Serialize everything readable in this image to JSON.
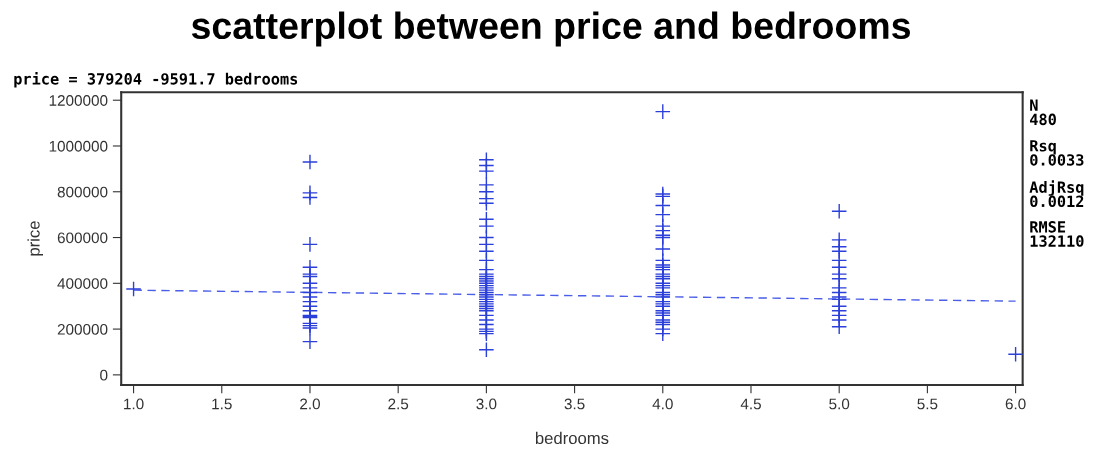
{
  "chart_data": {
    "type": "scatter",
    "title": "scatterplot between price and bedrooms",
    "subtitle": "price = 379204 -9591.7 bedrooms",
    "xlabel": "bedrooms",
    "ylabel": "price",
    "xlim": [
      0.93,
      6.04
    ],
    "xticks": [
      {
        "value": 1,
        "label": "1.0"
      },
      {
        "value": 1.5,
        "label": "1.5"
      },
      {
        "value": 2,
        "label": "2.0"
      },
      {
        "value": 2.5,
        "label": "2.5"
      },
      {
        "value": 3,
        "label": "3.0"
      },
      {
        "value": 3.5,
        "label": "3.5"
      },
      {
        "value": 4,
        "label": "4.0"
      },
      {
        "value": 4.5,
        "label": "4.5"
      },
      {
        "value": 5,
        "label": "5.0"
      },
      {
        "value": 5.5,
        "label": "5.5"
      },
      {
        "value": 6,
        "label": "6.0"
      }
    ],
    "ylim": [
      -44000,
      1235000
    ],
    "yticks": [
      0,
      200000,
      400000,
      600000,
      800000,
      1000000,
      1200000
    ],
    "grid": false,
    "annotations": [
      "N\n480",
      "Rsq\n0.0033",
      "AdjRsq\n0.0012",
      "RMSE\n132110"
    ],
    "series": [
      {
        "color": "#2b3fd9",
        "marker": "cross",
        "x": [
          1,
          2,
          2,
          2,
          2,
          2,
          2,
          2,
          2,
          2,
          2,
          2,
          2,
          2,
          2,
          2,
          2,
          2,
          2,
          2,
          2,
          2,
          3,
          3,
          3,
          3,
          3,
          3,
          3,
          3,
          3,
          3,
          3,
          3,
          3,
          3,
          3,
          3,
          3,
          3,
          3,
          3,
          3,
          3,
          3,
          3,
          3,
          3,
          3,
          3,
          3,
          3,
          3,
          3,
          3,
          3,
          3,
          3,
          3,
          3,
          4,
          4,
          4,
          4,
          4,
          4,
          4,
          4,
          4,
          4,
          4,
          4,
          4,
          4,
          4,
          4,
          4,
          4,
          4,
          4,
          4,
          4,
          4,
          4,
          4,
          4,
          4,
          4,
          4,
          4,
          4,
          4,
          4,
          4,
          5,
          5,
          5,
          5,
          5,
          5,
          5,
          5,
          5,
          5,
          5,
          5,
          5,
          5,
          5,
          5,
          5,
          6
        ],
        "values": [
          375000,
          930000,
          795000,
          775000,
          570000,
          470000,
          440000,
          430000,
          400000,
          380000,
          360000,
          340000,
          320000,
          300000,
          280000,
          260000,
          255000,
          250000,
          225000,
          215000,
          205000,
          145000,
          940000,
          915000,
          890000,
          830000,
          800000,
          770000,
          750000,
          680000,
          650000,
          600000,
          570000,
          540000,
          500000,
          460000,
          440000,
          420000,
          400000,
          380000,
          360000,
          340000,
          320000,
          300000,
          280000,
          260000,
          240000,
          220000,
          200000,
          180000,
          110000,
          430000,
          410000,
          390000,
          370000,
          350000,
          330000,
          310000,
          290000,
          190000,
          1150000,
          790000,
          780000,
          740000,
          700000,
          650000,
          630000,
          610000,
          600000,
          550000,
          500000,
          480000,
          460000,
          440000,
          420000,
          400000,
          380000,
          360000,
          340000,
          320000,
          300000,
          280000,
          260000,
          240000,
          220000,
          200000,
          180000,
          470000,
          430000,
          390000,
          350000,
          310000,
          270000,
          230000,
          715000,
          590000,
          560000,
          540000,
          500000,
          470000,
          440000,
          420000,
          380000,
          360000,
          340000,
          330000,
          300000,
          280000,
          260000,
          240000,
          210000,
          90000
        ]
      },
      {
        "type": "line",
        "color": "#4a5ee8",
        "line_style": "dashed",
        "marker": "none",
        "x": [
          1,
          6
        ],
        "values": [
          370000,
          322000
        ]
      }
    ]
  }
}
